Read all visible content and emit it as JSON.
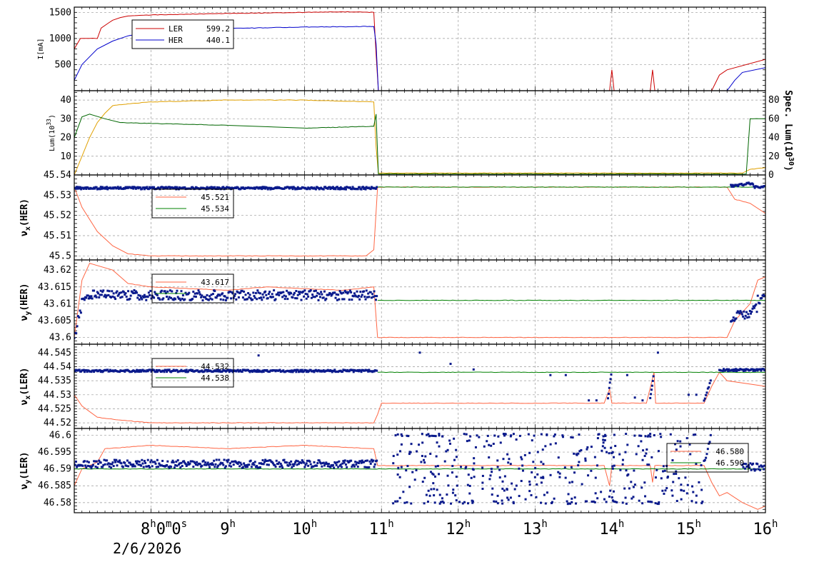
{
  "chart_data": [
    {
      "type": "line",
      "ylabel": "I[mA]",
      "ylim": [
        0,
        1600
      ],
      "yticks": [
        500,
        1000,
        1500
      ],
      "legend": {
        "placement": "top-left"
      },
      "series": [
        {
          "name": "LER",
          "legend_value": "599.2",
          "color": "#cc0000",
          "points": [
            [
              7.0,
              800
            ],
            [
              7.08,
              1000
            ],
            [
              7.3,
              1000
            ],
            [
              7.35,
              1200
            ],
            [
              7.45,
              1300
            ],
            [
              7.5,
              1350
            ],
            [
              7.6,
              1400
            ],
            [
              7.7,
              1430
            ],
            [
              8.0,
              1450
            ],
            [
              9.0,
              1480
            ],
            [
              10.0,
              1500
            ],
            [
              10.5,
              1510
            ],
            [
              10.9,
              1500
            ],
            [
              10.93,
              700
            ],
            [
              10.96,
              0
            ],
            [
              13.97,
              0
            ],
            [
              14.0,
              400
            ],
            [
              14.03,
              0
            ],
            [
              14.5,
              0
            ],
            [
              14.53,
              400
            ],
            [
              14.56,
              0
            ],
            [
              15.3,
              0
            ],
            [
              15.4,
              300
            ],
            [
              15.5,
              400
            ],
            [
              16.0,
              600
            ]
          ]
        },
        {
          "name": "HER",
          "legend_value": "440.1",
          "color": "#0000cc",
          "points": [
            [
              7.0,
              200
            ],
            [
              7.1,
              500
            ],
            [
              7.3,
              800
            ],
            [
              7.5,
              950
            ],
            [
              7.7,
              1050
            ],
            [
              8.0,
              1120
            ],
            [
              8.5,
              1160
            ],
            [
              9.0,
              1190
            ],
            [
              10.0,
              1220
            ],
            [
              10.9,
              1230
            ],
            [
              10.93,
              900
            ],
            [
              10.96,
              0
            ],
            [
              15.5,
              0
            ],
            [
              15.6,
              200
            ],
            [
              15.7,
              350
            ],
            [
              16.0,
              440
            ]
          ]
        }
      ]
    },
    {
      "type": "line",
      "ylabel": "Lum(10",
      "ylabel_sup": "33",
      "ylabel_close": ")",
      "ylim": [
        0,
        45
      ],
      "yticks": [
        10,
        20,
        30,
        40
      ],
      "y2label": "Spec. Lum(10",
      "y2label_sup": "30",
      "y2label_close": ")",
      "y2lim": [
        0,
        90
      ],
      "y2ticks": [
        0,
        20,
        40,
        60,
        80
      ],
      "series": [
        {
          "axis": "left",
          "color": "#e0a000",
          "points": [
            [
              7.0,
              0
            ],
            [
              7.1,
              10
            ],
            [
              7.2,
              20
            ],
            [
              7.3,
              28
            ],
            [
              7.4,
              33
            ],
            [
              7.5,
              37
            ],
            [
              7.7,
              38
            ],
            [
              8.0,
              39
            ],
            [
              9.0,
              40
            ],
            [
              10.0,
              40
            ],
            [
              10.9,
              39
            ],
            [
              10.93,
              15
            ],
            [
              10.96,
              1
            ],
            [
              15.7,
              1
            ],
            [
              15.8,
              3
            ],
            [
              16.0,
              4
            ]
          ]
        },
        {
          "axis": "right",
          "color": "#006600",
          "points": [
            [
              7.0,
              40
            ],
            [
              7.1,
              62
            ],
            [
              7.2,
              65
            ],
            [
              7.4,
              60
            ],
            [
              7.6,
              56
            ],
            [
              8.0,
              55
            ],
            [
              9.0,
              53
            ],
            [
              10.0,
              50
            ],
            [
              10.9,
              52
            ],
            [
              10.93,
              65
            ],
            [
              10.96,
              1
            ],
            [
              15.75,
              1
            ],
            [
              15.8,
              60
            ],
            [
              16.0,
              60
            ]
          ]
        }
      ]
    },
    {
      "type": "scatter",
      "ylabel": "νx(HER)",
      "ylabel_base": "ν",
      "ylabel_sub": "x",
      "ylabel_rest": "(HER)",
      "ylim": [
        45.498,
        45.54
      ],
      "yticks": [
        45.5,
        45.51,
        45.52,
        45.53,
        45.54
      ],
      "ytick_labels": [
        "45.5",
        "45.51",
        "45.52",
        "45.53",
        "45.54"
      ],
      "legend": {
        "placement": "top-left",
        "entries": [
          {
            "value": "45.521",
            "color": "#ff6644"
          },
          {
            "value": "45.534",
            "color": "#008000"
          }
        ]
      },
      "series": [
        {
          "kind": "line",
          "color": "#ff6644",
          "points": [
            [
              7.0,
              45.534
            ],
            [
              7.1,
              45.524
            ],
            [
              7.3,
              45.512
            ],
            [
              7.5,
              45.505
            ],
            [
              7.7,
              45.501
            ],
            [
              8.0,
              45.5
            ],
            [
              10.8,
              45.5
            ],
            [
              10.9,
              45.503
            ],
            [
              10.95,
              45.534
            ],
            [
              15.5,
              45.534
            ],
            [
              15.6,
              45.528
            ],
            [
              15.8,
              45.526
            ],
            [
              16.0,
              45.521
            ]
          ]
        },
        {
          "kind": "line",
          "color": "#008000",
          "points": [
            [
              10.95,
              45.534
            ],
            [
              16.0,
              45.534
            ]
          ]
        },
        {
          "kind": "dots",
          "color": "#0a1a8c",
          "spread": 0.0006,
          "segments": [
            [
              7.0,
              10.95,
              45.5335,
              45.5335
            ],
            [
              15.55,
              15.85,
              45.5345,
              45.536
            ],
            [
              15.85,
              16.0,
              45.534,
              45.534
            ]
          ]
        }
      ]
    },
    {
      "type": "scatter",
      "ylabel": "νy(HER)",
      "ylabel_base": "ν",
      "ylabel_sub": "y",
      "ylabel_rest": "(HER)",
      "ylim": [
        43.598,
        43.623
      ],
      "yticks": [
        43.6,
        43.605,
        43.61,
        43.615,
        43.62
      ],
      "ytick_labels": [
        "43.6",
        "43.605",
        "43.61",
        "43.615",
        "43.62"
      ],
      "legend": {
        "placement": "top-left",
        "entries": [
          {
            "value": "43.617",
            "color": "#ff6644"
          },
          {
            "value": "",
            "color": "#008000"
          }
        ]
      },
      "series": [
        {
          "kind": "line",
          "color": "#ff6644",
          "points": [
            [
              7.0,
              43.6
            ],
            [
              7.1,
              43.617
            ],
            [
              7.2,
              43.622
            ],
            [
              7.5,
              43.62
            ],
            [
              7.7,
              43.616
            ],
            [
              8.0,
              43.615
            ],
            [
              9.0,
              43.614
            ],
            [
              9.5,
              43.615
            ],
            [
              10.5,
              43.614
            ],
            [
              10.9,
              43.615
            ],
            [
              10.95,
              43.6
            ],
            [
              15.5,
              43.6
            ],
            [
              15.6,
              43.605
            ],
            [
              15.8,
              43.61
            ],
            [
              15.9,
              43.617
            ],
            [
              16.0,
              43.618
            ]
          ]
        },
        {
          "kind": "line",
          "color": "#008000",
          "points": [
            [
              10.95,
              43.611
            ],
            [
              16.0,
              43.611
            ]
          ]
        },
        {
          "kind": "dots",
          "color": "#0a1a8c",
          "spread": 0.0015,
          "segments": [
            [
              7.0,
              7.1,
              43.6,
              43.61
            ],
            [
              7.1,
              10.95,
              43.6125,
              43.6125
            ],
            [
              15.55,
              15.9,
              43.6055,
              43.6085
            ],
            [
              15.9,
              16.0,
              43.611,
              43.613
            ]
          ]
        }
      ]
    },
    {
      "type": "scatter",
      "ylabel": "νx(LER)",
      "ylabel_base": "ν",
      "ylabel_sub": "x",
      "ylabel_rest": "(LER)",
      "ylim": [
        44.518,
        44.548
      ],
      "yticks": [
        44.52,
        44.525,
        44.53,
        44.535,
        44.54,
        44.545
      ],
      "ytick_labels": [
        "44.52",
        "44.525",
        "44.53",
        "44.535",
        "44.54",
        "44.545"
      ],
      "legend": {
        "placement": "top-left",
        "entries": [
          {
            "value": "44.532",
            "color": "#ff6644"
          },
          {
            "value": "44.538",
            "color": "#008000"
          }
        ]
      },
      "series": [
        {
          "kind": "line",
          "color": "#ff6644",
          "points": [
            [
              7.0,
              44.53
            ],
            [
              7.1,
              44.526
            ],
            [
              7.3,
              44.522
            ],
            [
              7.6,
              44.521
            ],
            [
              8.0,
              44.52
            ],
            [
              10.9,
              44.52
            ],
            [
              10.95,
              44.523
            ],
            [
              11.0,
              44.527
            ],
            [
              13.9,
              44.527
            ],
            [
              13.97,
              44.532
            ],
            [
              14.0,
              44.527
            ],
            [
              14.45,
              44.527
            ],
            [
              14.55,
              44.538
            ],
            [
              14.57,
              44.527
            ],
            [
              15.2,
              44.527
            ],
            [
              15.3,
              44.533
            ],
            [
              15.4,
              44.538
            ],
            [
              15.5,
              44.535
            ],
            [
              16.0,
              44.533
            ]
          ]
        },
        {
          "kind": "line",
          "color": "#008000",
          "points": [
            [
              10.95,
              44.538
            ],
            [
              16.0,
              44.538
            ]
          ]
        },
        {
          "kind": "dots",
          "color": "#0a1a8c",
          "spread": 0.0004,
          "segments": [
            [
              7.0,
              10.95,
              44.5385,
              44.5385
            ],
            [
              15.4,
              16.0,
              44.5388,
              44.5388
            ],
            [
              13.95,
              14.0,
              44.529,
              44.539
            ],
            [
              14.5,
              14.55,
              44.529,
              44.538
            ],
            [
              15.2,
              15.3,
              44.528,
              44.536
            ]
          ]
        },
        {
          "kind": "points",
          "color": "#0a1a8c",
          "points": [
            [
              11.5,
              44.545
            ],
            [
              11.9,
              44.541
            ],
            [
              12.2,
              44.539
            ],
            [
              13.2,
              44.537
            ],
            [
              13.4,
              44.537
            ],
            [
              13.7,
              44.528
            ],
            [
              13.8,
              44.528
            ],
            [
              14.3,
              44.529
            ],
            [
              14.4,
              44.528
            ],
            [
              14.2,
              44.537
            ],
            [
              14.6,
              44.545
            ],
            [
              15.0,
              44.53
            ],
            [
              15.1,
              44.53
            ],
            [
              9.4,
              44.544
            ]
          ]
        }
      ]
    },
    {
      "type": "scatter",
      "ylabel": "νy(LER)",
      "ylabel_base": "ν",
      "ylabel_sub": "y",
      "ylabel_rest": "(LER)",
      "ylim": [
        46.577,
        46.602
      ],
      "yticks": [
        46.58,
        46.585,
        46.59,
        46.595,
        46.6
      ],
      "ytick_labels": [
        "46.58",
        "46.585",
        "46.59",
        "46.595",
        "46.6"
      ],
      "legend": {
        "placement": "top-right",
        "entries": [
          {
            "value": "46.580",
            "color": "#ff6644"
          },
          {
            "value": "46.590",
            "color": "#008000"
          }
        ]
      },
      "series": [
        {
          "kind": "line",
          "color": "#ff6644",
          "points": [
            [
              7.0,
              46.585
            ],
            [
              7.1,
              46.59
            ],
            [
              7.3,
              46.592
            ],
            [
              7.4,
              46.596
            ],
            [
              8.0,
              46.597
            ],
            [
              9.0,
              46.596
            ],
            [
              10.0,
              46.597
            ],
            [
              10.9,
              46.596
            ],
            [
              10.95,
              46.591
            ],
            [
              13.9,
              46.591
            ],
            [
              13.97,
              46.585
            ],
            [
              14.0,
              46.591
            ],
            [
              14.5,
              46.591
            ],
            [
              14.53,
              46.586
            ],
            [
              14.56,
              46.591
            ],
            [
              15.2,
              46.591
            ],
            [
              15.3,
              46.586
            ],
            [
              15.4,
              46.582
            ],
            [
              15.5,
              46.583
            ],
            [
              15.7,
              46.58
            ],
            [
              15.9,
              46.578
            ],
            [
              16.0,
              46.579
            ]
          ]
        },
        {
          "kind": "line",
          "color": "#008000",
          "points": [
            [
              7.0,
              46.59
            ],
            [
              16.0,
              46.59
            ]
          ]
        },
        {
          "kind": "dots",
          "color": "#0a1a8c",
          "spread": 0.0012,
          "segments": [
            [
              7.0,
              10.95,
              46.5915,
              46.5915
            ],
            [
              15.7,
              16.0,
              46.5905,
              46.5905
            ],
            [
              15.2,
              15.3,
              46.592,
              46.6
            ]
          ]
        },
        {
          "kind": "random",
          "color": "#0a1a8c",
          "x_range": [
            11.15,
            15.2
          ],
          "y_range": [
            46.58,
            46.6
          ],
          "count": 430,
          "seed": 7
        }
      ]
    }
  ],
  "x_axis": {
    "xlim": [
      7.0,
      16.0
    ],
    "ticks": [
      {
        "x": 8,
        "base": "8",
        "sup": "h",
        "extra": "0",
        "extra_sup": "m",
        "extra2": "0",
        "extra2_sup": "s"
      },
      {
        "x": 9,
        "base": "9",
        "sup": "h"
      },
      {
        "x": 10,
        "base": "10",
        "sup": "h"
      },
      {
        "x": 11,
        "base": "11",
        "sup": "h"
      },
      {
        "x": 12,
        "base": "12",
        "sup": "h"
      },
      {
        "x": 13,
        "base": "13",
        "sup": "h"
      },
      {
        "x": 14,
        "base": "14",
        "sup": "h"
      },
      {
        "x": 15,
        "base": "15",
        "sup": "h"
      },
      {
        "x": 16,
        "base": "16",
        "sup": "h"
      }
    ],
    "date": "2/6/2026"
  },
  "colors": {
    "grid": "#999999",
    "frame": "#000000"
  }
}
